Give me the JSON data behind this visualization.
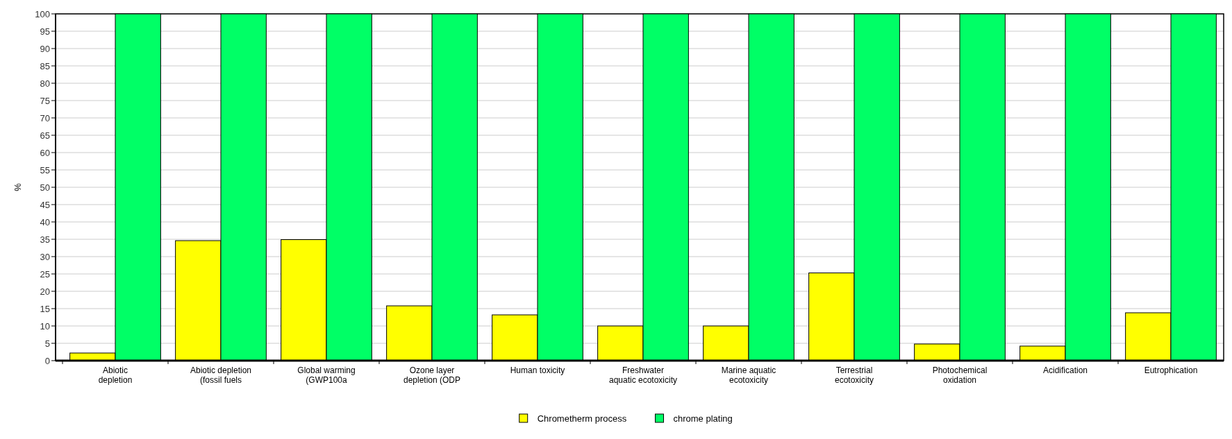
{
  "chart_data": {
    "type": "bar",
    "ylabel": "%",
    "categories": [
      "Abiotic\ndepletion",
      "Abiotic depletion\n(fossil fuels",
      "Global warming\n(GWP100a",
      "Ozone layer\ndepletion (ODP",
      "Human toxicity",
      "Freshwater\naquatic ecotoxicity",
      "Marine aquatic\necotoxicity",
      "Terrestrial\necotoxicity",
      "Photochemical\noxidation",
      "Acidification",
      "Eutrophication"
    ],
    "series": [
      {
        "name": "Chrometherm process",
        "color": "#ffff00",
        "values": [
          2.2,
          34.6,
          34.9,
          15.8,
          13.2,
          10,
          10,
          25.3,
          4.8,
          4.2,
          13.8
        ]
      },
      {
        "name": "chrome plating",
        "color": "#00ff66",
        "values": [
          100,
          100,
          100,
          100,
          100,
          100,
          100,
          100,
          100,
          100,
          100
        ]
      }
    ],
    "ylim": [
      0,
      100
    ],
    "yticks": [
      0,
      5,
      10,
      15,
      20,
      25,
      30,
      35,
      40,
      45,
      50,
      55,
      60,
      65,
      70,
      75,
      80,
      85,
      90,
      95,
      100
    ],
    "grid": "y",
    "legend": "bottom"
  }
}
